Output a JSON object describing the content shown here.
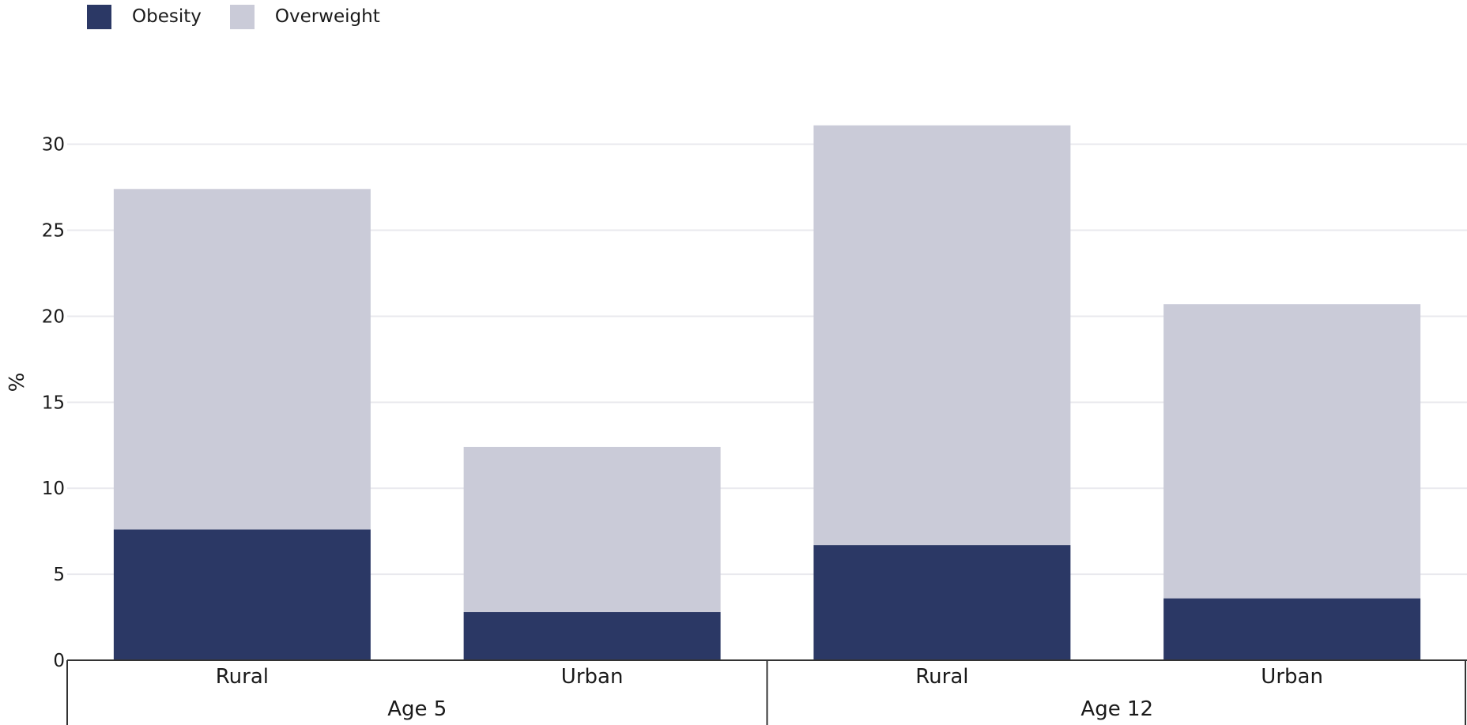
{
  "chart_data": {
    "type": "bar",
    "stacked": true,
    "groups": [
      {
        "label": "Age 5",
        "categories": [
          "Rural",
          "Urban"
        ]
      },
      {
        "label": "Age 12",
        "categories": [
          "Rural",
          "Urban"
        ]
      }
    ],
    "categories": [
      "Rural",
      "Urban",
      "Rural",
      "Urban"
    ],
    "series": [
      {
        "name": "Obesity",
        "color": "#2b3865",
        "values": [
          7.6,
          2.8,
          6.7,
          3.6
        ]
      },
      {
        "name": "Overweight",
        "color": "#cacbd8",
        "values": [
          19.8,
          9.6,
          24.4,
          17.1
        ]
      }
    ],
    "ylabel": "%",
    "ylim": [
      0,
      31.5
    ],
    "yticks": [
      0,
      5,
      10,
      15,
      20,
      25,
      30
    ],
    "grid": true,
    "legend": "top-left"
  }
}
